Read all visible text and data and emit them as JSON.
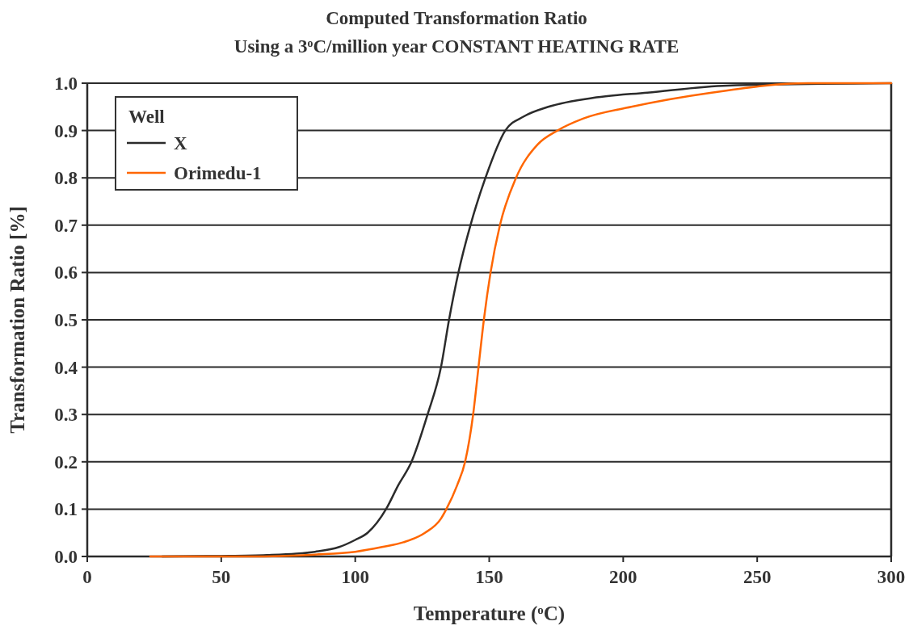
{
  "chart_data": {
    "type": "line",
    "title": "Computed Transformation Ratio",
    "subtitle": "Using a 3$^{o}$C/million year CONSTANT HEATING RATE",
    "xlabel": "Temperature ($^{o}$C)",
    "ylabel": "Transformation Ratio [%]",
    "legend_title": "Well",
    "legend": "top left",
    "grid": "y",
    "xlim": [
      0,
      300
    ],
    "xticks": [
      0,
      50,
      100,
      150,
      200,
      250,
      300
    ],
    "ylim": [
      0,
      1
    ],
    "yticks": [
      {
        "value": 0,
        "label": "0.0"
      },
      {
        "value": 0.1,
        "label": "0.1"
      },
      {
        "value": 0.2,
        "label": "0.2"
      },
      {
        "value": 0.3,
        "label": "0.3"
      },
      {
        "value": 0.4,
        "label": "0.4"
      },
      {
        "value": 0.5,
        "label": "0.5"
      },
      {
        "value": 0.6,
        "label": "0.6"
      },
      {
        "value": 0.7,
        "label": "0.7"
      },
      {
        "value": 0.8,
        "label": "0.8"
      },
      {
        "value": 0.9,
        "label": "0.9"
      },
      {
        "value": 1,
        "label": "1.0"
      }
    ],
    "series": [
      {
        "name": "X",
        "color": "#2b2b2b",
        "x": [
          28,
          50,
          67,
          78,
          85,
          94,
          100,
          104.6,
          111.5,
          116,
          121,
          127,
          132,
          135,
          138.5,
          143,
          148.6,
          156,
          163,
          172,
          190,
          209,
          239,
          300
        ],
        "values": [
          0,
          0.001,
          0.003,
          0.006,
          0.01,
          0.02,
          0.035,
          0.05,
          0.1,
          0.15,
          0.2,
          0.3,
          0.4,
          0.5,
          0.6,
          0.7,
          0.8,
          0.9,
          0.93,
          0.95,
          0.97,
          0.98,
          0.995,
          1
        ]
      },
      {
        "name": "Orimedu-1",
        "color": "#ff6600",
        "x": [
          23.5,
          60,
          85,
          100,
          110,
          118,
          126,
          132,
          134,
          138,
          141,
          144,
          146,
          148,
          150.5,
          154,
          160,
          168,
          175.5,
          185,
          203,
          233,
          269,
          300
        ],
        "values": [
          0,
          0,
          0.004,
          0.01,
          0.02,
          0.03,
          0.05,
          0.08,
          0.1,
          0.15,
          0.2,
          0.3,
          0.4,
          0.5,
          0.6,
          0.7,
          0.8,
          0.87,
          0.9,
          0.925,
          0.95,
          0.98,
          1,
          1
        ]
      }
    ]
  }
}
